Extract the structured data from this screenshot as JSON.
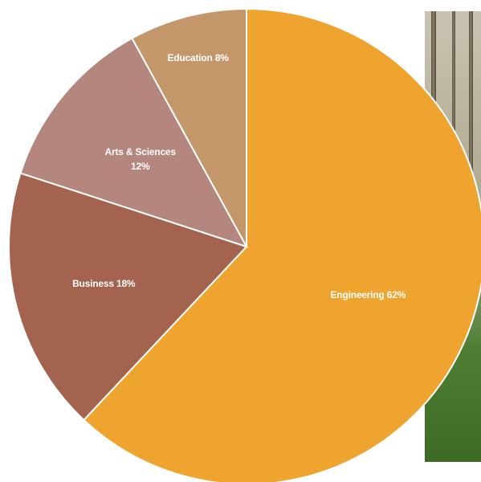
{
  "chart_data": {
    "type": "pie",
    "title": "",
    "slices": [
      {
        "label_lines": [
          "Engineering 62%"
        ],
        "category": "Engineering",
        "value": 62,
        "color": "#eea42e"
      },
      {
        "label_lines": [
          "Business 18%"
        ],
        "category": "Business",
        "value": 18,
        "color": "#a4634e"
      },
      {
        "label_lines": [
          "Arts & Sciences",
          "12%"
        ],
        "category": "Arts & Sciences",
        "value": 12,
        "color": "#b5867d"
      },
      {
        "label_lines": [
          "Education 8%"
        ],
        "category": "Education",
        "value": 8,
        "color": "#c4976a"
      }
    ],
    "start": "12 o'clock",
    "direction": "clockwise",
    "slice_border_color": "#ffffff",
    "legend": "none"
  },
  "background": {
    "description_icon": "tree-photo",
    "colors": [
      "#c9c4b2",
      "#4f7d33"
    ]
  }
}
